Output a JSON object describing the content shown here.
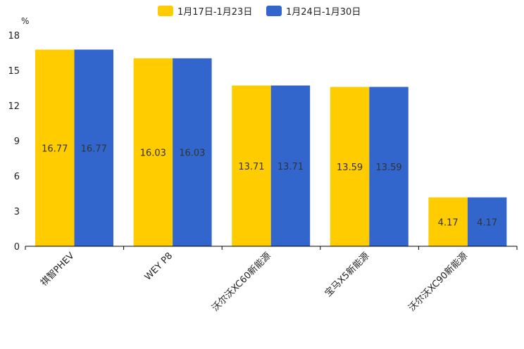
{
  "chart_data": {
    "type": "bar",
    "unit": "%",
    "categories": [
      "祺智PHEV",
      "WEY P8",
      "沃尔沃XC60新能源",
      "宝马X5新能源",
      "沃尔沃XC90新能源"
    ],
    "series": [
      {
        "name": "1月17日-1月23日",
        "color": "#ffcc00",
        "values": [
          16.77,
          16.03,
          13.71,
          13.59,
          4.17
        ]
      },
      {
        "name": "1月24日-1月30日",
        "color": "#3366cc",
        "values": [
          16.77,
          16.03,
          13.71,
          13.59,
          4.17
        ]
      }
    ],
    "ylim": [
      0,
      18
    ],
    "yticks": [
      0,
      3,
      6,
      9,
      12,
      15,
      18
    ],
    "legend": "top"
  }
}
